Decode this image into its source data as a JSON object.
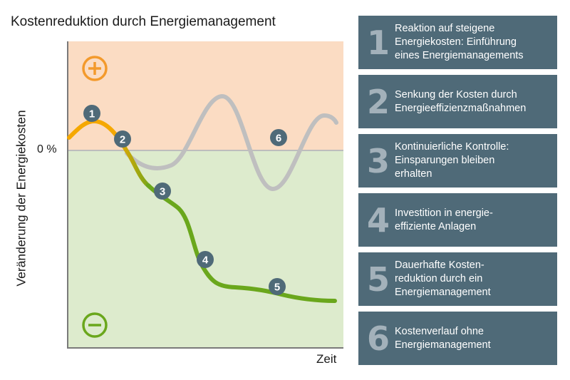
{
  "title": "Kostenreduktion durch Energiemanagement",
  "y_axis_label": "Veränderung der Energiekosten",
  "x_axis_label": "Zeit",
  "zero_label": "0 %",
  "plus_symbol": "+",
  "minus_symbol": "−",
  "colors": {
    "positive_area": "#fbdcc3",
    "negative_area": "#ddebcd",
    "reference_line": "#bdbdbd",
    "without_management_curve": "#bfbfbf",
    "reaction_curve": "#f5a800",
    "reduction_curve": "#6aa71c",
    "plus_icon": "#f39a2c",
    "minus_icon": "#6aa71c",
    "marker": "#4f6a78",
    "legend_box": "#4f6a78",
    "legend_number": "#a3b1ba"
  },
  "markers": [
    "1",
    "2",
    "3",
    "4",
    "5",
    "6"
  ],
  "legend": [
    {
      "number": "1",
      "text": "Reaktion auf steigene\nEnergiekosten: Einführung\neines Energiemanagements"
    },
    {
      "number": "2",
      "text": "Senkung der Kosten durch\nEnergieeffizienzmaßnahmen"
    },
    {
      "number": "3",
      "text": "Kontinuierliche Kontrolle:\nEinsparungen bleiben\nerhalten"
    },
    {
      "number": "4",
      "text": "Investition in energie-\neffiziente Anlagen"
    },
    {
      "number": "5",
      "text": "Dauerhafte Kosten-\nreduktion durch ein\nEnergiemanagement"
    },
    {
      "number": "6",
      "text": "Kostenverlauf ohne\nEnergiemanagement"
    }
  ]
}
